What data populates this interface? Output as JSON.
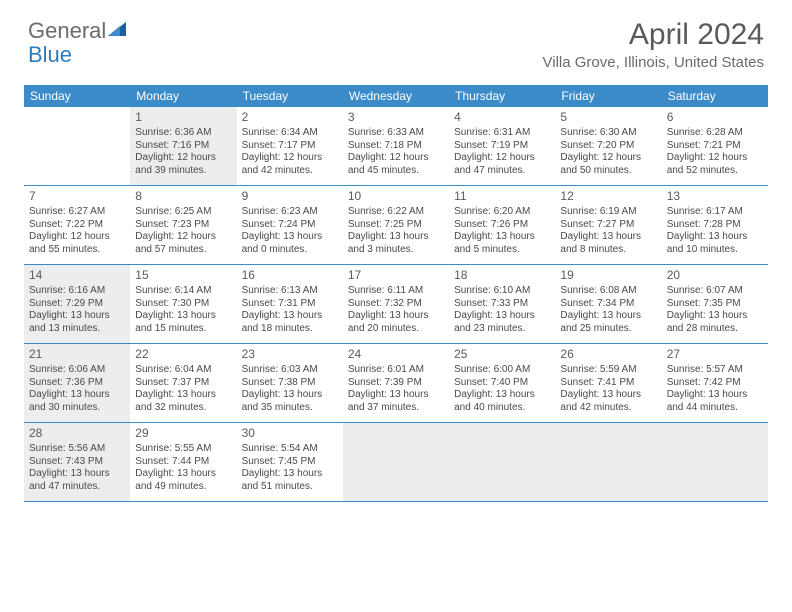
{
  "logo": {
    "text1": "General",
    "text2": "Blue"
  },
  "title": "April 2024",
  "location": "Villa Grove, Illinois, United States",
  "colors": {
    "header_bar": "#3b8bc9",
    "header_text": "#ffffff",
    "shaded_cell": "#ededed",
    "cell_bg": "#ffffff",
    "text": "#4a4a4a",
    "logo_gray": "#6b6b6b",
    "logo_blue": "#2f7bbf",
    "title_color": "#5a5a5a"
  },
  "days_of_week": [
    "Sunday",
    "Monday",
    "Tuesday",
    "Wednesday",
    "Thursday",
    "Friday",
    "Saturday"
  ],
  "weeks": [
    [
      {
        "day": "",
        "shaded": false,
        "empty": true
      },
      {
        "day": "1",
        "shaded": true,
        "sunrise": "Sunrise: 6:36 AM",
        "sunset": "Sunset: 7:16 PM",
        "daylight1": "Daylight: 12 hours",
        "daylight2": "and 39 minutes."
      },
      {
        "day": "2",
        "shaded": false,
        "sunrise": "Sunrise: 6:34 AM",
        "sunset": "Sunset: 7:17 PM",
        "daylight1": "Daylight: 12 hours",
        "daylight2": "and 42 minutes."
      },
      {
        "day": "3",
        "shaded": false,
        "sunrise": "Sunrise: 6:33 AM",
        "sunset": "Sunset: 7:18 PM",
        "daylight1": "Daylight: 12 hours",
        "daylight2": "and 45 minutes."
      },
      {
        "day": "4",
        "shaded": false,
        "sunrise": "Sunrise: 6:31 AM",
        "sunset": "Sunset: 7:19 PM",
        "daylight1": "Daylight: 12 hours",
        "daylight2": "and 47 minutes."
      },
      {
        "day": "5",
        "shaded": false,
        "sunrise": "Sunrise: 6:30 AM",
        "sunset": "Sunset: 7:20 PM",
        "daylight1": "Daylight: 12 hours",
        "daylight2": "and 50 minutes."
      },
      {
        "day": "6",
        "shaded": false,
        "sunrise": "Sunrise: 6:28 AM",
        "sunset": "Sunset: 7:21 PM",
        "daylight1": "Daylight: 12 hours",
        "daylight2": "and 52 minutes."
      }
    ],
    [
      {
        "day": "7",
        "shaded": false,
        "sunrise": "Sunrise: 6:27 AM",
        "sunset": "Sunset: 7:22 PM",
        "daylight1": "Daylight: 12 hours",
        "daylight2": "and 55 minutes."
      },
      {
        "day": "8",
        "shaded": false,
        "sunrise": "Sunrise: 6:25 AM",
        "sunset": "Sunset: 7:23 PM",
        "daylight1": "Daylight: 12 hours",
        "daylight2": "and 57 minutes."
      },
      {
        "day": "9",
        "shaded": false,
        "sunrise": "Sunrise: 6:23 AM",
        "sunset": "Sunset: 7:24 PM",
        "daylight1": "Daylight: 13 hours",
        "daylight2": "and 0 minutes."
      },
      {
        "day": "10",
        "shaded": false,
        "sunrise": "Sunrise: 6:22 AM",
        "sunset": "Sunset: 7:25 PM",
        "daylight1": "Daylight: 13 hours",
        "daylight2": "and 3 minutes."
      },
      {
        "day": "11",
        "shaded": false,
        "sunrise": "Sunrise: 6:20 AM",
        "sunset": "Sunset: 7:26 PM",
        "daylight1": "Daylight: 13 hours",
        "daylight2": "and 5 minutes."
      },
      {
        "day": "12",
        "shaded": false,
        "sunrise": "Sunrise: 6:19 AM",
        "sunset": "Sunset: 7:27 PM",
        "daylight1": "Daylight: 13 hours",
        "daylight2": "and 8 minutes."
      },
      {
        "day": "13",
        "shaded": false,
        "sunrise": "Sunrise: 6:17 AM",
        "sunset": "Sunset: 7:28 PM",
        "daylight1": "Daylight: 13 hours",
        "daylight2": "and 10 minutes."
      }
    ],
    [
      {
        "day": "14",
        "shaded": true,
        "sunrise": "Sunrise: 6:16 AM",
        "sunset": "Sunset: 7:29 PM",
        "daylight1": "Daylight: 13 hours",
        "daylight2": "and 13 minutes."
      },
      {
        "day": "15",
        "shaded": false,
        "sunrise": "Sunrise: 6:14 AM",
        "sunset": "Sunset: 7:30 PM",
        "daylight1": "Daylight: 13 hours",
        "daylight2": "and 15 minutes."
      },
      {
        "day": "16",
        "shaded": false,
        "sunrise": "Sunrise: 6:13 AM",
        "sunset": "Sunset: 7:31 PM",
        "daylight1": "Daylight: 13 hours",
        "daylight2": "and 18 minutes."
      },
      {
        "day": "17",
        "shaded": false,
        "sunrise": "Sunrise: 6:11 AM",
        "sunset": "Sunset: 7:32 PM",
        "daylight1": "Daylight: 13 hours",
        "daylight2": "and 20 minutes."
      },
      {
        "day": "18",
        "shaded": false,
        "sunrise": "Sunrise: 6:10 AM",
        "sunset": "Sunset: 7:33 PM",
        "daylight1": "Daylight: 13 hours",
        "daylight2": "and 23 minutes."
      },
      {
        "day": "19",
        "shaded": false,
        "sunrise": "Sunrise: 6:08 AM",
        "sunset": "Sunset: 7:34 PM",
        "daylight1": "Daylight: 13 hours",
        "daylight2": "and 25 minutes."
      },
      {
        "day": "20",
        "shaded": false,
        "sunrise": "Sunrise: 6:07 AM",
        "sunset": "Sunset: 7:35 PM",
        "daylight1": "Daylight: 13 hours",
        "daylight2": "and 28 minutes."
      }
    ],
    [
      {
        "day": "21",
        "shaded": true,
        "sunrise": "Sunrise: 6:06 AM",
        "sunset": "Sunset: 7:36 PM",
        "daylight1": "Daylight: 13 hours",
        "daylight2": "and 30 minutes."
      },
      {
        "day": "22",
        "shaded": false,
        "sunrise": "Sunrise: 6:04 AM",
        "sunset": "Sunset: 7:37 PM",
        "daylight1": "Daylight: 13 hours",
        "daylight2": "and 32 minutes."
      },
      {
        "day": "23",
        "shaded": false,
        "sunrise": "Sunrise: 6:03 AM",
        "sunset": "Sunset: 7:38 PM",
        "daylight1": "Daylight: 13 hours",
        "daylight2": "and 35 minutes."
      },
      {
        "day": "24",
        "shaded": false,
        "sunrise": "Sunrise: 6:01 AM",
        "sunset": "Sunset: 7:39 PM",
        "daylight1": "Daylight: 13 hours",
        "daylight2": "and 37 minutes."
      },
      {
        "day": "25",
        "shaded": false,
        "sunrise": "Sunrise: 6:00 AM",
        "sunset": "Sunset: 7:40 PM",
        "daylight1": "Daylight: 13 hours",
        "daylight2": "and 40 minutes."
      },
      {
        "day": "26",
        "shaded": false,
        "sunrise": "Sunrise: 5:59 AM",
        "sunset": "Sunset: 7:41 PM",
        "daylight1": "Daylight: 13 hours",
        "daylight2": "and 42 minutes."
      },
      {
        "day": "27",
        "shaded": false,
        "sunrise": "Sunrise: 5:57 AM",
        "sunset": "Sunset: 7:42 PM",
        "daylight1": "Daylight: 13 hours",
        "daylight2": "and 44 minutes."
      }
    ],
    [
      {
        "day": "28",
        "shaded": true,
        "sunrise": "Sunrise: 5:56 AM",
        "sunset": "Sunset: 7:43 PM",
        "daylight1": "Daylight: 13 hours",
        "daylight2": "and 47 minutes."
      },
      {
        "day": "29",
        "shaded": false,
        "sunrise": "Sunrise: 5:55 AM",
        "sunset": "Sunset: 7:44 PM",
        "daylight1": "Daylight: 13 hours",
        "daylight2": "and 49 minutes."
      },
      {
        "day": "30",
        "shaded": false,
        "sunrise": "Sunrise: 5:54 AM",
        "sunset": "Sunset: 7:45 PM",
        "daylight1": "Daylight: 13 hours",
        "daylight2": "and 51 minutes."
      },
      {
        "day": "",
        "shaded": true,
        "empty": true
      },
      {
        "day": "",
        "shaded": true,
        "empty": true
      },
      {
        "day": "",
        "shaded": true,
        "empty": true
      },
      {
        "day": "",
        "shaded": true,
        "empty": true
      }
    ]
  ]
}
